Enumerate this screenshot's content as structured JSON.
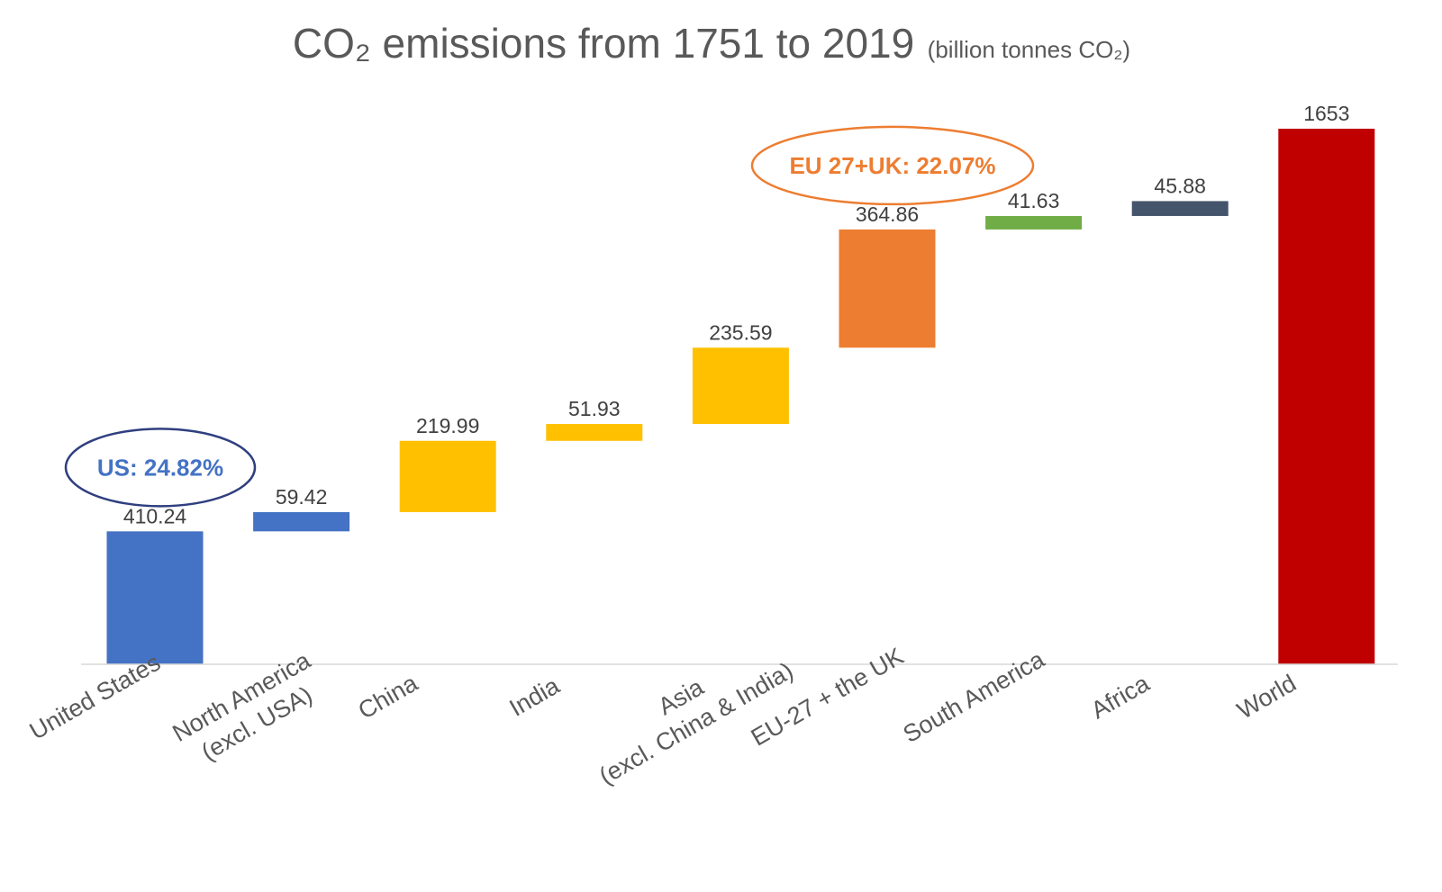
{
  "title": {
    "main": "CO₂ emissions from 1751 to 2019",
    "unit": "(billion tonnes CO₂)"
  },
  "chart_data": {
    "type": "bar",
    "subtype": "waterfall",
    "title": "CO₂ emissions from 1751 to 2019",
    "unit": "(billion tonnes CO₂)",
    "categories": [
      "United States",
      "North America\n(excl. USA)",
      "China",
      "India",
      "Asia\n(excl. China & India)",
      "EU-27 + the UK",
      "South America",
      "Africa",
      "World"
    ],
    "values": [
      410.24,
      59.42,
      219.99,
      51.93,
      235.59,
      364.86,
      41.63,
      45.88,
      1653
    ],
    "value_labels": [
      "410.24",
      "59.42",
      "219.99",
      "51.93",
      "235.59",
      "364.86",
      "41.63",
      "45.88",
      "1653"
    ],
    "bar_colors": [
      "#4472C4",
      "#4472C4",
      "#FFC000",
      "#FFC000",
      "#FFC000",
      "#ED7D31",
      "#70AD47",
      "#44546A",
      "#C00000"
    ],
    "total_index": 8,
    "ylim": [
      0,
      1653
    ],
    "grid": false,
    "legend": "none",
    "annotations": [
      {
        "text": "US: 24.82%",
        "target": "United States",
        "color": "#4472C4",
        "outline": "#2F3F7F"
      },
      {
        "text": "EU 27+UK: 22.07%",
        "target": "EU-27 + the UK",
        "color": "#ED7D31",
        "outline": "#ED7D31"
      }
    ]
  },
  "colors": {
    "title": "#595959",
    "axis_line": "#D9D9D9",
    "value_label": "#404040",
    "category_label": "#595959"
  }
}
